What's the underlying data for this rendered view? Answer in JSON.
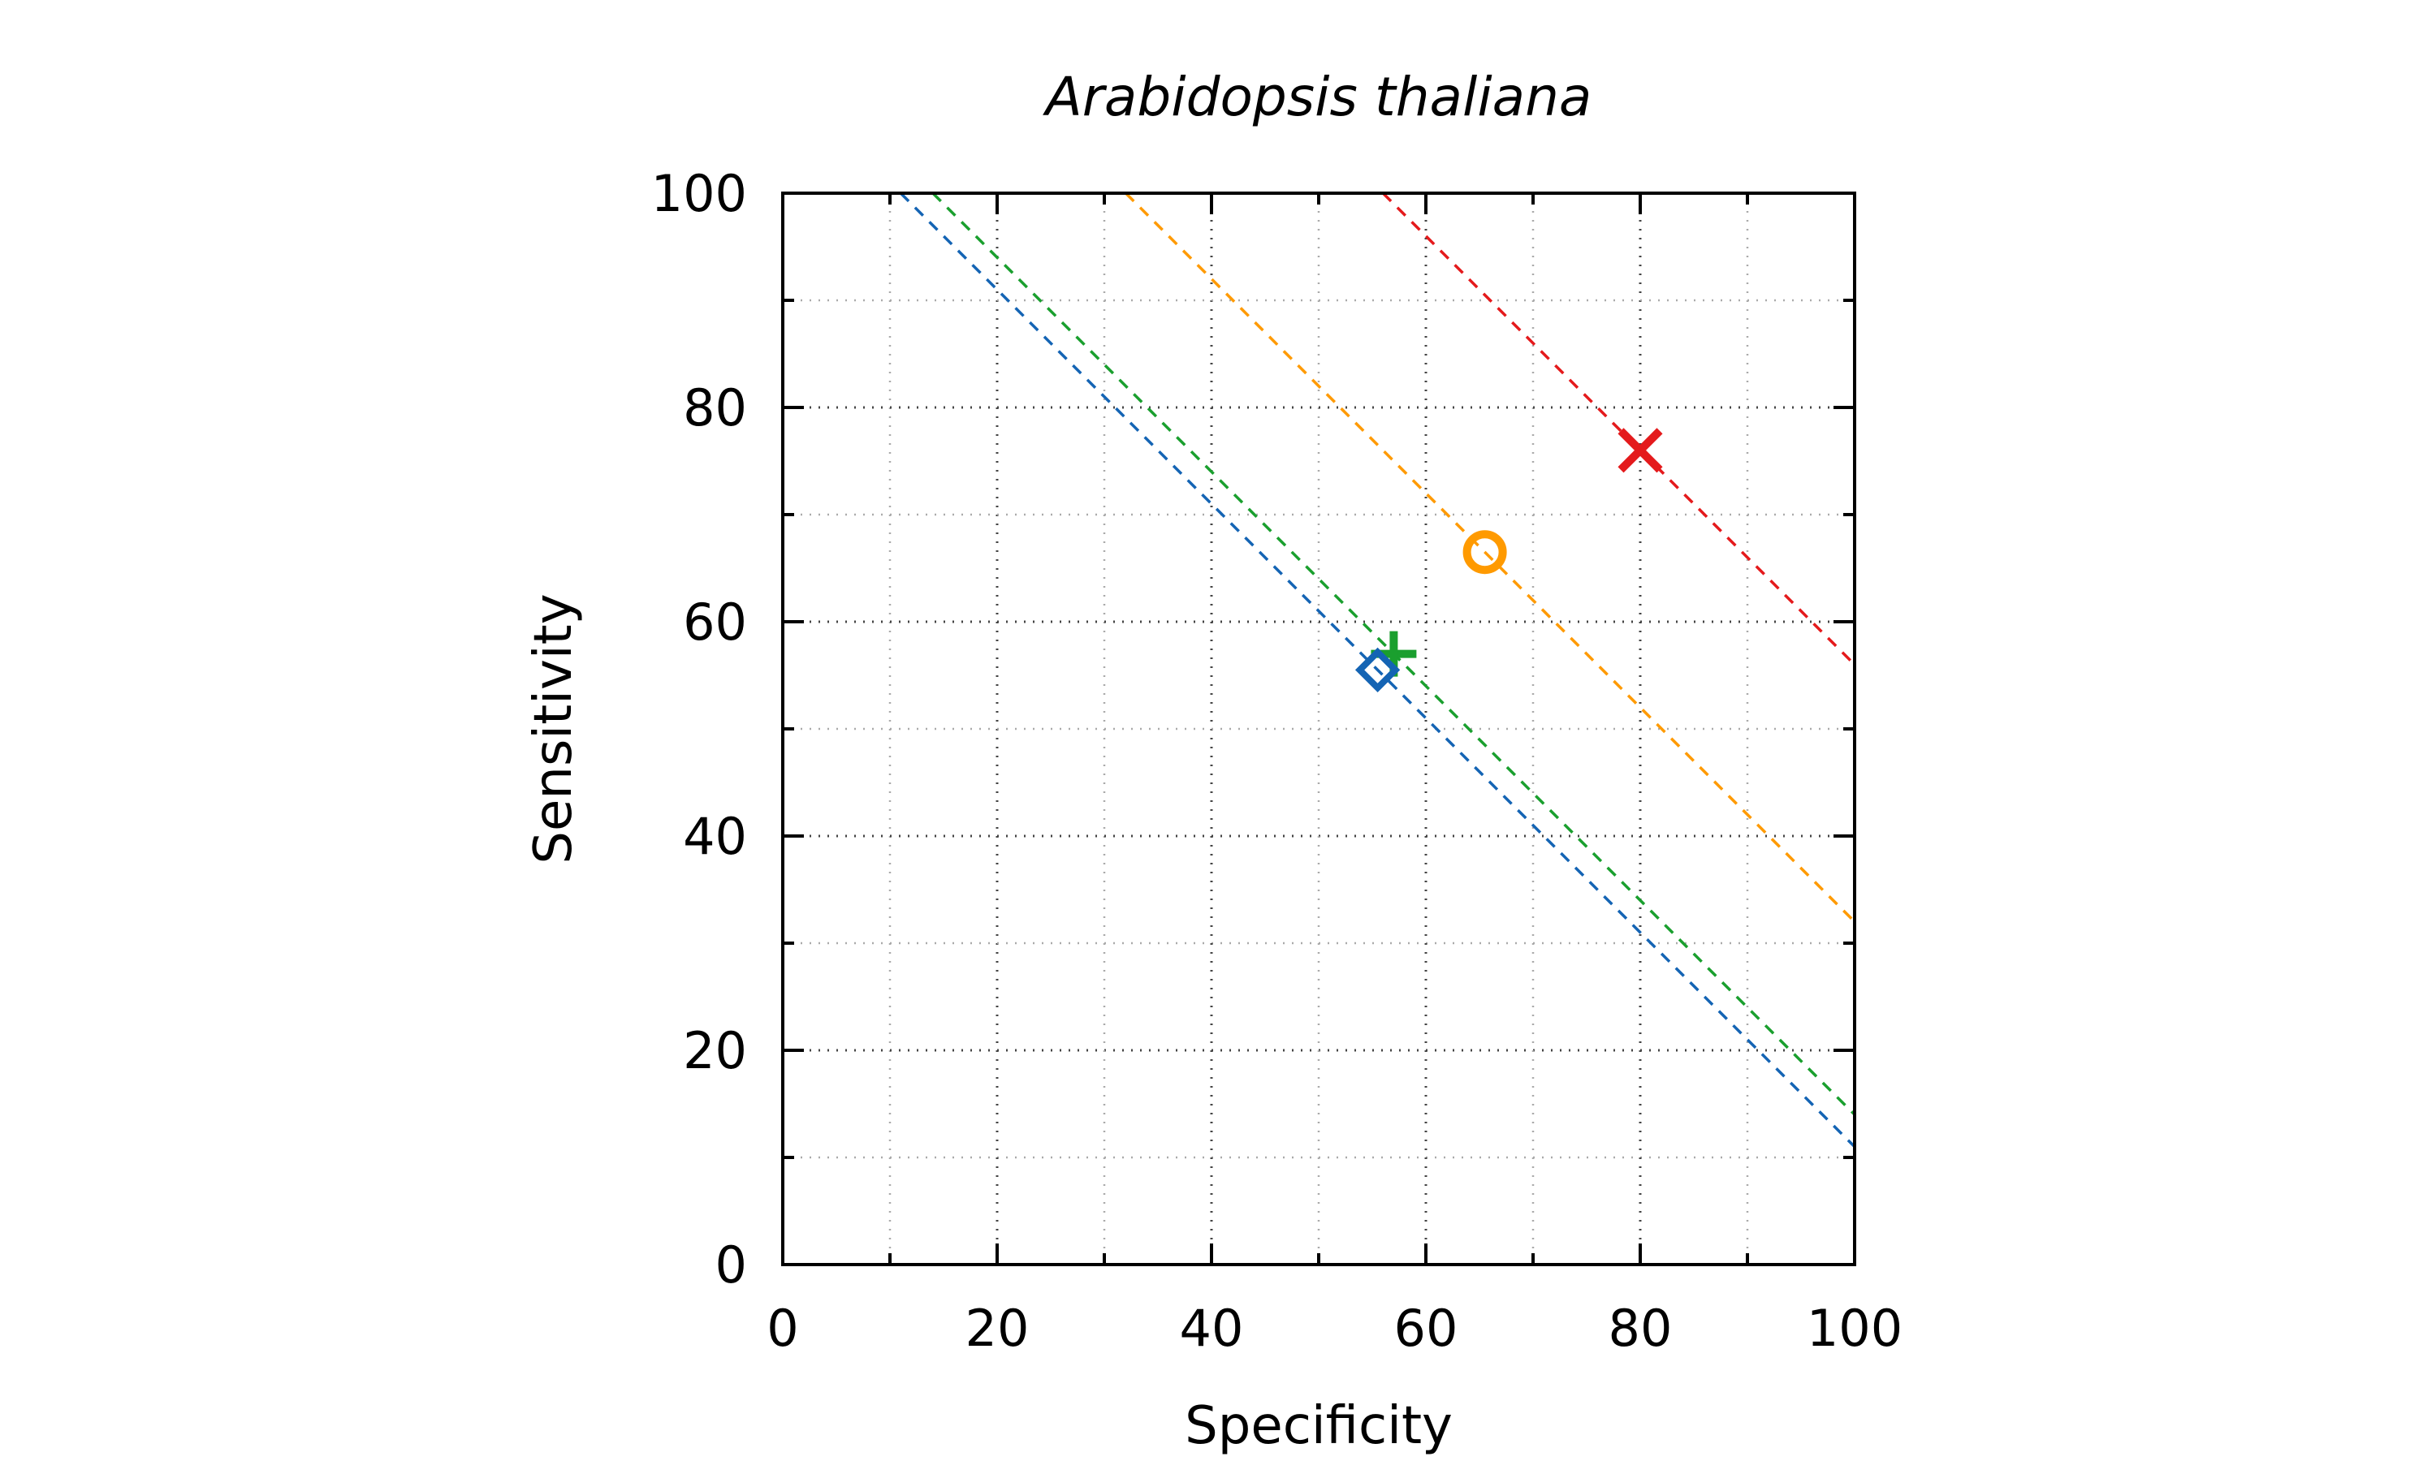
{
  "chart_data": {
    "type": "scatter",
    "title": "Arabidopsis thaliana",
    "xlabel": "Specificity",
    "ylabel": "Sensitivity",
    "xlim": [
      0,
      100
    ],
    "ylim": [
      0,
      100
    ],
    "xticks": [
      "0",
      "20",
      "40",
      "60",
      "80",
      "100"
    ],
    "yticks": [
      "0",
      "20",
      "40",
      "60",
      "80",
      "100"
    ],
    "grid": true,
    "legend": "none",
    "series": [
      {
        "marker": "cross",
        "color": "#e41a1c",
        "x": 80,
        "y": 76,
        "line_sum": 156
      },
      {
        "marker": "circle",
        "color": "#ff9a00",
        "x": 65.5,
        "y": 66.5,
        "line_sum": 132
      },
      {
        "marker": "plus",
        "color": "#1a9f2e",
        "x": 57,
        "y": 57,
        "line_sum": 114
      },
      {
        "marker": "diamond",
        "color": "#1464b4",
        "x": 55.5,
        "y": 55.5,
        "line_sum": 111
      }
    ]
  }
}
